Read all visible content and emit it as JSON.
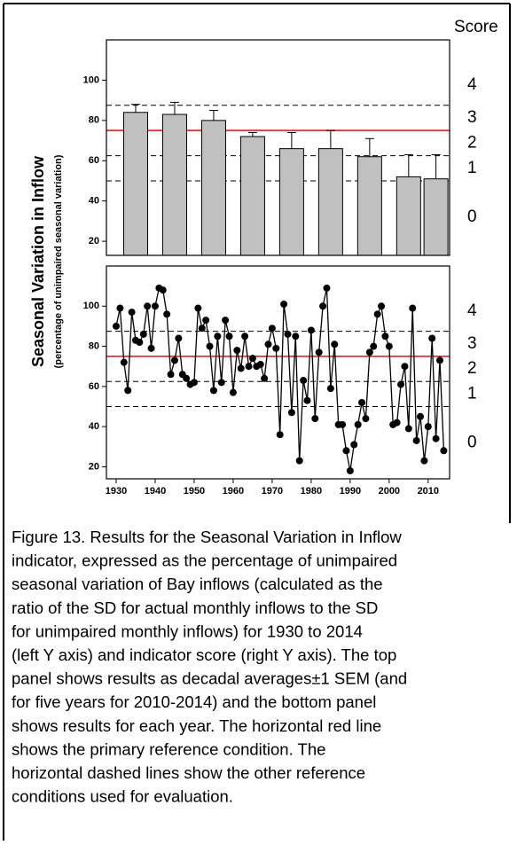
{
  "figure": {
    "ylabel": "Seasonal Variation in Inflow",
    "ylabel_sub": "(percentage of unimpaired seasonal variation)",
    "score_label": "Score"
  },
  "chart_data": [
    {
      "type": "bar",
      "color": "#c0c0c0",
      "x": [
        1935,
        1945,
        1955,
        1965,
        1975,
        1985,
        1995,
        2005,
        2012
      ],
      "values": [
        84,
        83,
        80,
        72,
        66,
        66,
        62,
        52,
        51
      ],
      "errors": [
        4,
        6,
        5,
        2,
        8,
        9,
        9,
        11,
        12
      ],
      "xlim": [
        1927.5,
        2015.5
      ],
      "ylim": [
        13,
        120
      ],
      "yticks": [
        20,
        40,
        60,
        80,
        100
      ],
      "reference_lines": [
        {
          "value": 87.5,
          "color": "#000000",
          "style": "dashed"
        },
        {
          "value": 75,
          "color": "#e8312f",
          "style": "solid"
        },
        {
          "value": 62.5,
          "color": "#000000",
          "style": "dashed"
        },
        {
          "value": 50,
          "color": "#000000",
          "style": "dashed"
        }
      ],
      "score_labels": [
        "4",
        "3",
        "2",
        "1",
        "0"
      ]
    },
    {
      "type": "line",
      "color": "#000000",
      "x": [
        1930,
        1931,
        1932,
        1933,
        1934,
        1935,
        1936,
        1937,
        1938,
        1939,
        1940,
        1941,
        1942,
        1943,
        1944,
        1945,
        1946,
        1947,
        1948,
        1949,
        1950,
        1951,
        1952,
        1953,
        1954,
        1955,
        1956,
        1957,
        1958,
        1959,
        1960,
        1961,
        1962,
        1963,
        1964,
        1965,
        1966,
        1967,
        1968,
        1969,
        1970,
        1971,
        1972,
        1973,
        1974,
        1975,
        1976,
        1977,
        1978,
        1979,
        1980,
        1981,
        1982,
        1983,
        1984,
        1985,
        1986,
        1987,
        1988,
        1989,
        1990,
        1991,
        1992,
        1993,
        1994,
        1995,
        1996,
        1997,
        1998,
        1999,
        2000,
        2001,
        2002,
        2003,
        2004,
        2005,
        2006,
        2007,
        2008,
        2009,
        2010,
        2011,
        2012,
        2013,
        2014
      ],
      "values": [
        90,
        99,
        72,
        58,
        97,
        83,
        82,
        86,
        100,
        79,
        100,
        109,
        108,
        96,
        66,
        73,
        84,
        66,
        64,
        61,
        62,
        99,
        89,
        93,
        80,
        58,
        85,
        62,
        93,
        85,
        57,
        78,
        69,
        85,
        70,
        74,
        70,
        71,
        64,
        81,
        89,
        79,
        36,
        101,
        86,
        47,
        85,
        23,
        63,
        53,
        88,
        44,
        77,
        100,
        109,
        59,
        81,
        41,
        41,
        28,
        18,
        31,
        41,
        52,
        44,
        77,
        80,
        96,
        100,
        85,
        80,
        41,
        42,
        61,
        70,
        39,
        99,
        33,
        45,
        23,
        40,
        84,
        34,
        73,
        28
      ],
      "xlim": [
        1927.5,
        2015.5
      ],
      "ylim": [
        14,
        120
      ],
      "yticks": [
        20,
        40,
        60,
        80,
        100
      ],
      "xticks": [
        1930,
        1940,
        1950,
        1960,
        1970,
        1980,
        1990,
        2000,
        2010
      ],
      "reference_lines": [
        {
          "value": 87.5,
          "color": "#000000",
          "style": "dashed"
        },
        {
          "value": 75,
          "color": "#e8312f",
          "style": "solid"
        },
        {
          "value": 62.5,
          "color": "#000000",
          "style": "dashed"
        },
        {
          "value": 50,
          "color": "#000000",
          "style": "dashed"
        }
      ],
      "score_labels": [
        "4",
        "3",
        "2",
        "1",
        "0"
      ]
    }
  ],
  "caption": [
    "Figure 13. Results for the Seasonal Variation in Inflow",
    "indicator, expressed as the percentage of unimpaired",
    "seasonal  variation  of Bay inflows (calculated as  the",
    "ratio of  the SD for actual monthly inflows to the SD",
    "for unimpaired monthly inflows) for 1930 to 2014",
    "(left Y axis) and indicator score (right Y axis). The top",
    "panel shows results as decadal averages±1 SEM (and",
    "for five years for 2010-2014) and the bottom panel",
    "shows results for each year. The horizontal red line",
    "shows the primary reference condition. The",
    "horizontal dashed lines show the other reference",
    "conditions used for evaluation."
  ]
}
